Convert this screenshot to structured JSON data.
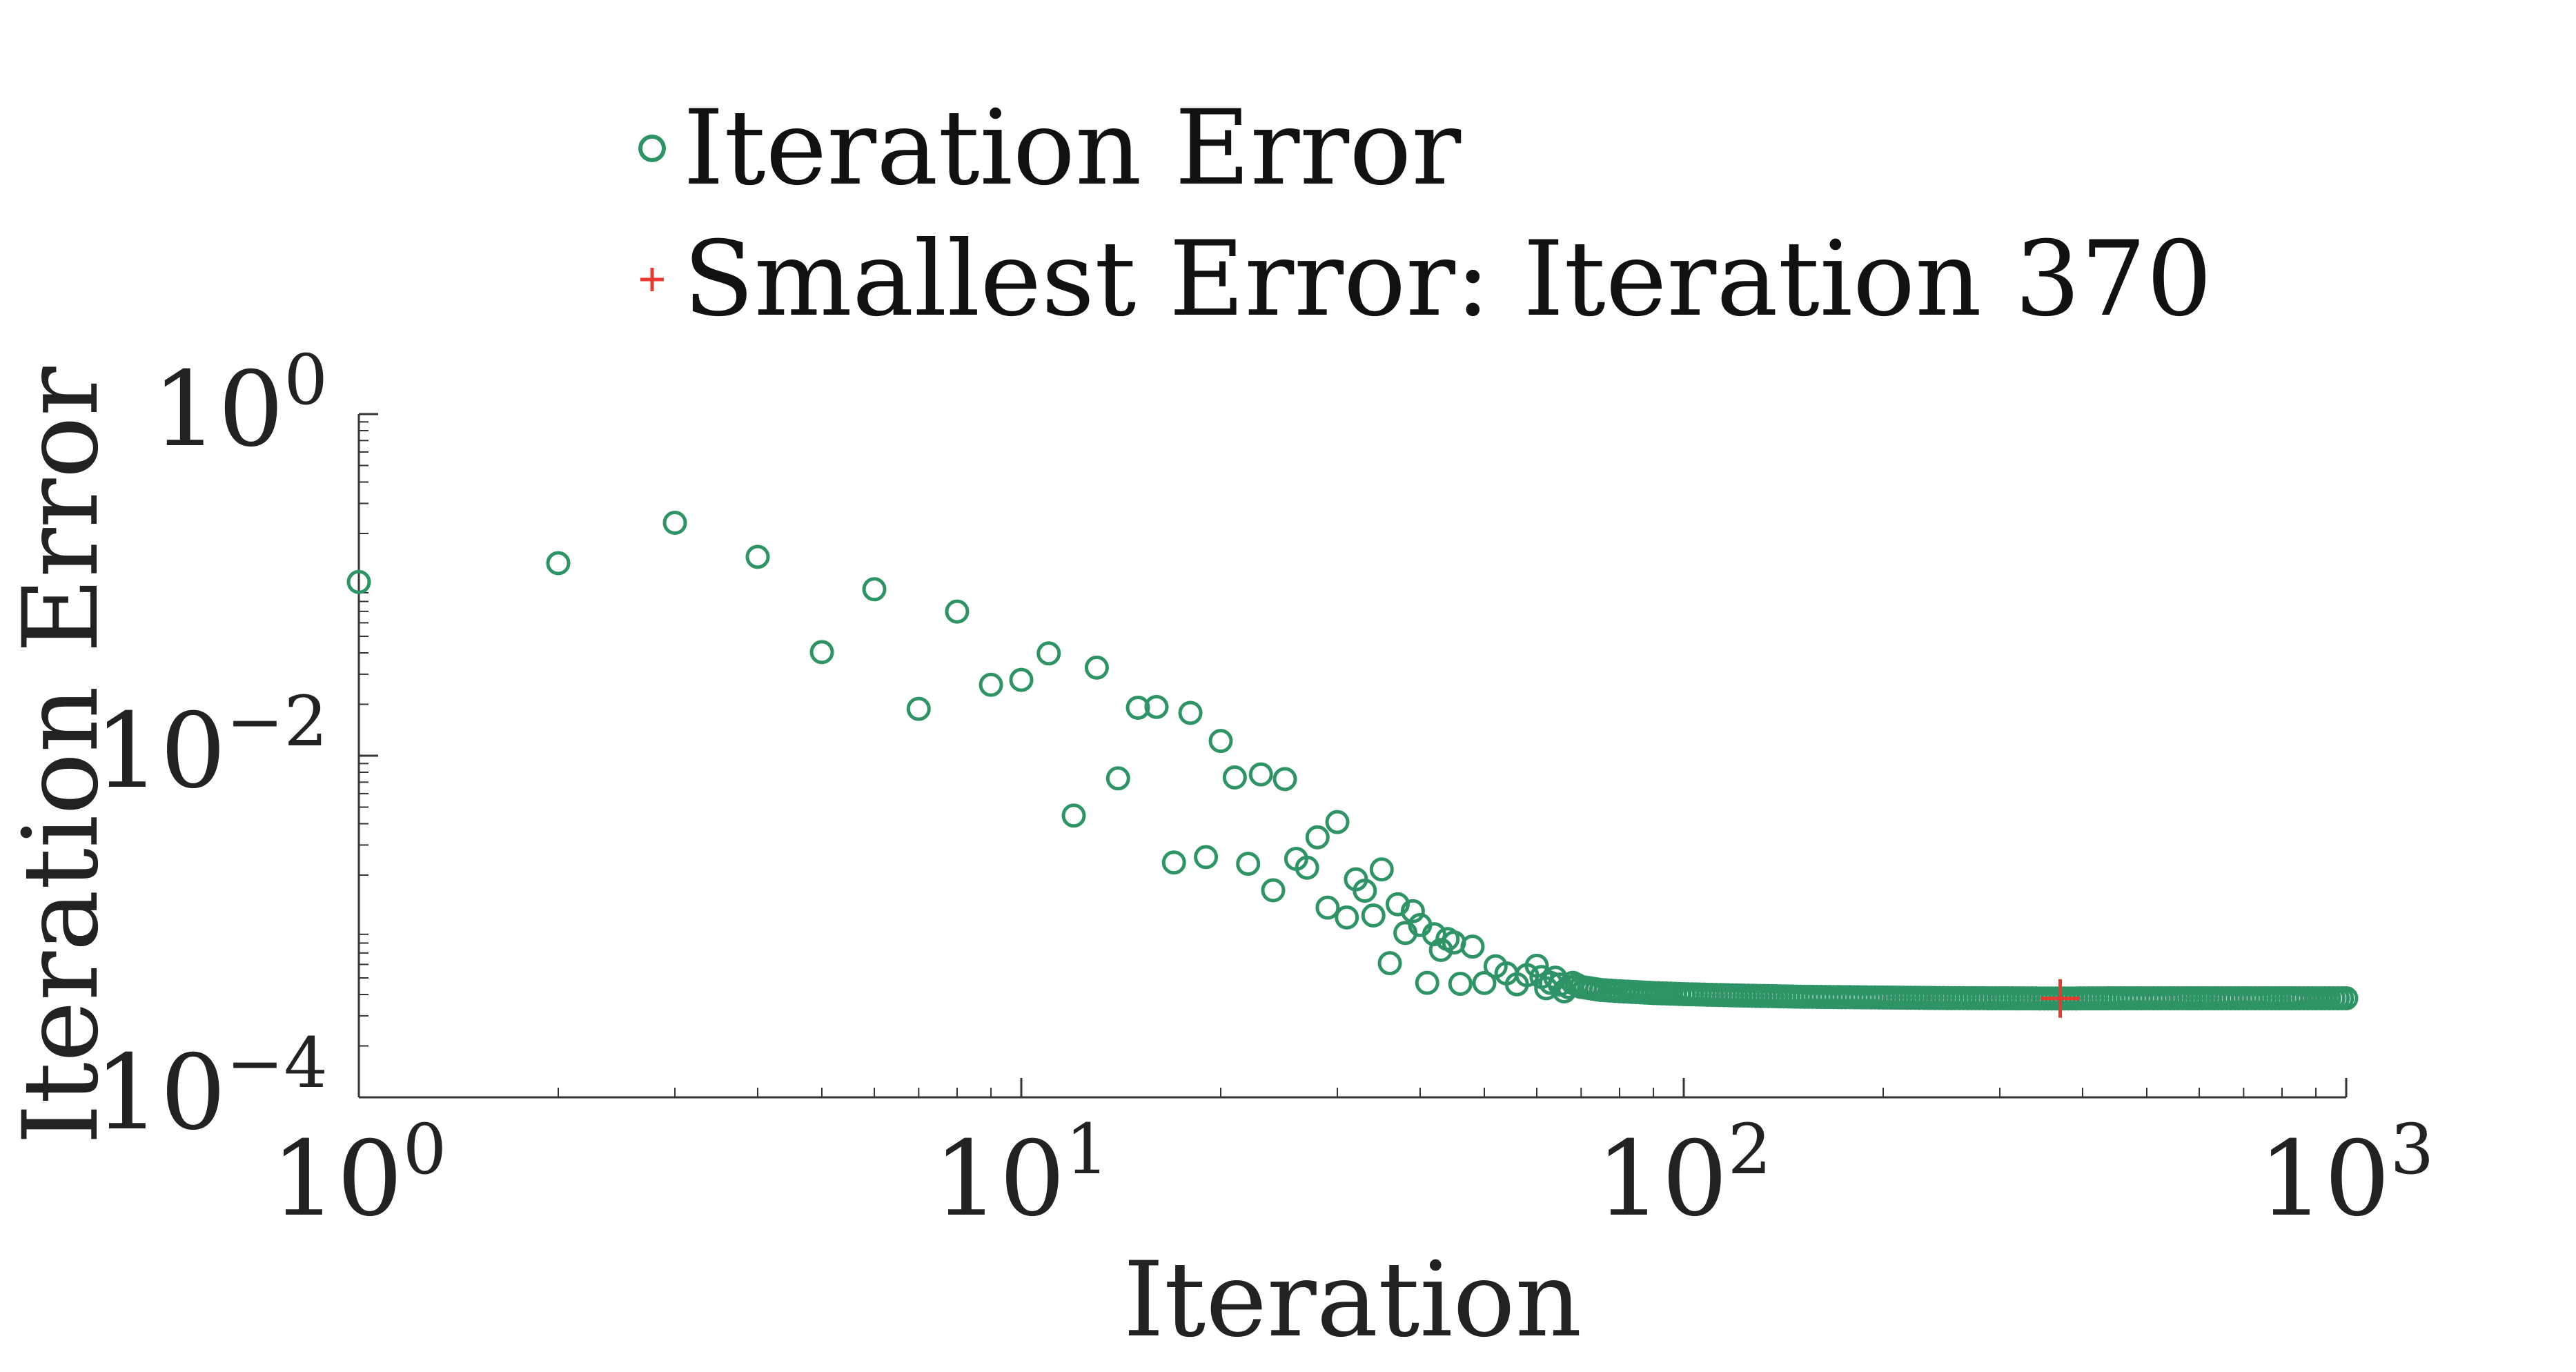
{
  "chart_data": {
    "type": "scatter",
    "title": "",
    "xlabel": "Iteration",
    "ylabel": "Iteration Error",
    "xscale": "log",
    "yscale": "log",
    "xlim": [
      1,
      1000
    ],
    "ylim": [
      0.0001,
      1
    ],
    "grid": false,
    "legend_position": "top",
    "x_ticks": [
      {
        "value": 1,
        "base": "10",
        "exp": "0"
      },
      {
        "value": 10,
        "base": "10",
        "exp": "1"
      },
      {
        "value": 100,
        "base": "10",
        "exp": "2"
      },
      {
        "value": 1000,
        "base": "10",
        "exp": "3"
      }
    ],
    "y_ticks": [
      {
        "value": 1,
        "base": "10",
        "exp": "0"
      },
      {
        "value": 0.01,
        "base": "10",
        "exp": "−2"
      },
      {
        "value": 0.0001,
        "base": "10",
        "exp": "−4"
      }
    ],
    "series": [
      {
        "name": "Iteration Error",
        "marker": "circle",
        "color": "#2e9466",
        "points": [
          [
            1,
            0.104
          ],
          [
            2,
            0.134
          ],
          [
            3,
            0.231
          ],
          [
            4,
            0.146
          ],
          [
            5,
            0.0404
          ],
          [
            6,
            0.0943
          ],
          [
            7,
            0.0188
          ],
          [
            8,
            0.0698
          ],
          [
            9,
            0.026
          ],
          [
            10,
            0.0278
          ],
          [
            11,
            0.0397
          ],
          [
            12,
            0.00446
          ],
          [
            13,
            0.0328
          ],
          [
            14,
            0.00737
          ],
          [
            15,
            0.0191
          ],
          [
            16,
            0.0193
          ],
          [
            17,
            0.00237
          ],
          [
            18,
            0.0178
          ],
          [
            19,
            0.00255
          ],
          [
            20,
            0.0122
          ],
          [
            21,
            0.00746
          ],
          [
            22,
            0.00233
          ],
          [
            23,
            0.00777
          ],
          [
            24,
            0.00163
          ],
          [
            25,
            0.0073
          ],
          [
            26,
            0.00249
          ],
          [
            27,
            0.00221
          ],
          [
            28,
            0.00333
          ],
          [
            29,
            0.00129
          ],
          [
            30,
            0.00409
          ],
          [
            31,
            0.00113
          ],
          [
            32,
            0.00189
          ],
          [
            33,
            0.00162
          ],
          [
            34,
            0.00116
          ],
          [
            35,
            0.00216
          ],
          [
            36,
            0.00061
          ],
          [
            37,
            0.00135
          ],
          [
            38,
            0.000917
          ],
          [
            39,
            0.00123
          ],
          [
            40,
            0.00102
          ],
          [
            41,
            0.000468
          ],
          [
            42,
            0.000902
          ],
          [
            43,
            0.000729
          ],
          [
            44,
            0.000845
          ],
          [
            45,
            0.000806
          ],
          [
            46,
            0.000462
          ],
          [
            48,
            0.000763
          ],
          [
            50,
            0.000467
          ],
          [
            52,
            0.000585
          ],
          [
            54,
            0.000531
          ],
          [
            56,
            0.000459
          ],
          [
            58,
            0.000519
          ],
          [
            60,
            0.000589
          ],
          [
            62,
            0.000435
          ],
          [
            64,
            0.000502
          ],
          [
            66,
            0.000417
          ],
          [
            68,
            0.000468
          ],
          [
            70,
            0.000443
          ],
          [
            75,
            0.000425
          ],
          [
            80,
            0.000418
          ],
          [
            90,
            0.000408
          ],
          [
            100,
            0.000402
          ],
          [
            120,
            0.000395
          ],
          [
            150,
            0.000388
          ],
          [
            200,
            0.000384
          ],
          [
            250,
            0.000381
          ],
          [
            300,
            0.00038
          ],
          [
            370,
            0.000379
          ],
          [
            450,
            0.00038
          ],
          [
            550,
            0.00038
          ],
          [
            650,
            0.00038
          ],
          [
            750,
            0.00038
          ],
          [
            850,
            0.00038
          ],
          [
            1000,
            0.00038
          ]
        ]
      },
      {
        "name": "Smallest Error: Iteration 370",
        "marker": "plus",
        "color": "#e8392f",
        "points": [
          [
            370,
            0.000379
          ]
        ]
      }
    ]
  }
}
